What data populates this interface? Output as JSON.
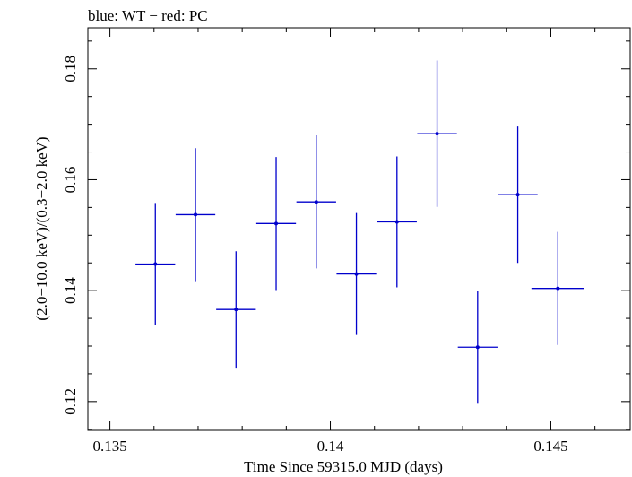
{
  "chart_data": {
    "type": "scatter",
    "title": "blue: WT − red: PC",
    "xlabel": "Time Since 59315.0 MJD (days)",
    "ylabel": "(2.0−10.0 keV)/(0.3−2.0 keV)",
    "xlim": [
      0.1345,
      0.1468
    ],
    "ylim": [
      0.1148,
      0.1874
    ],
    "x_ticks": [
      {
        "value": 0.135,
        "label": "0.135"
      },
      {
        "value": 0.14,
        "label": "0.14"
      },
      {
        "value": 0.145,
        "label": "0.145"
      }
    ],
    "x_minor_step": 0.001,
    "y_ticks": [
      {
        "value": 0.12,
        "label": "0.12"
      },
      {
        "value": 0.14,
        "label": "0.14"
      },
      {
        "value": 0.16,
        "label": "0.16"
      },
      {
        "value": 0.18,
        "label": "0.18"
      }
    ],
    "y_minor_step": 0.005,
    "grid": false,
    "series": [
      {
        "color": "#0000cc",
        "points": [
          {
            "x": 0.13603,
            "xerr": 0.00045,
            "y": 0.1448,
            "yerr_low": 0.011,
            "yerr_high": 0.011
          },
          {
            "x": 0.13694,
            "xerr": 0.00045,
            "y": 0.1537,
            "yerr_low": 0.012,
            "yerr_high": 0.012
          },
          {
            "x": 0.13786,
            "xerr": 0.00045,
            "y": 0.1366,
            "yerr_low": 0.0105,
            "yerr_high": 0.0105
          },
          {
            "x": 0.13877,
            "xerr": 0.00045,
            "y": 0.1521,
            "yerr_low": 0.012,
            "yerr_high": 0.012
          },
          {
            "x": 0.13968,
            "xerr": 0.00045,
            "y": 0.156,
            "yerr_low": 0.012,
            "yerr_high": 0.012
          },
          {
            "x": 0.14059,
            "xerr": 0.00045,
            "y": 0.143,
            "yerr_low": 0.011,
            "yerr_high": 0.011
          },
          {
            "x": 0.14151,
            "xerr": 0.00045,
            "y": 0.1524,
            "yerr_low": 0.0118,
            "yerr_high": 0.0118
          },
          {
            "x": 0.14242,
            "xerr": 0.00045,
            "y": 0.1683,
            "yerr_low": 0.0132,
            "yerr_high": 0.0132
          },
          {
            "x": 0.14334,
            "xerr": 0.00045,
            "y": 0.1298,
            "yerr_low": 0.0102,
            "yerr_high": 0.0102
          },
          {
            "x": 0.14425,
            "xerr": 0.00045,
            "y": 0.1573,
            "yerr_low": 0.0123,
            "yerr_high": 0.0123
          },
          {
            "x": 0.14516,
            "xerr": 0.0006,
            "y": 0.1404,
            "yerr_low": 0.0102,
            "yerr_high": 0.0102
          }
        ]
      }
    ]
  }
}
